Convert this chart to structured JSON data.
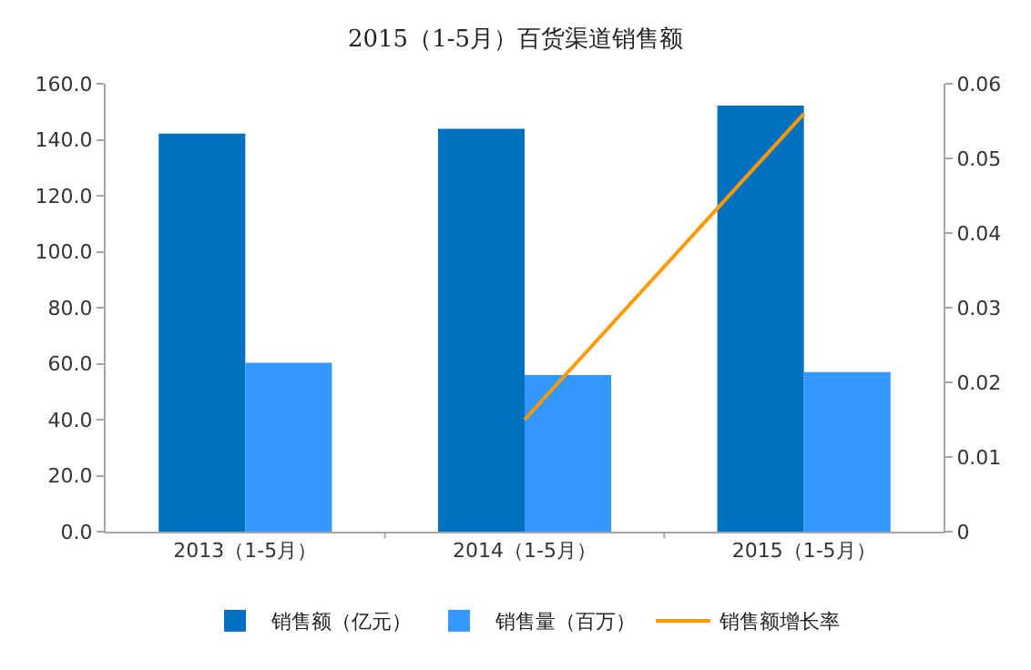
{
  "chart_data": {
    "type": "bar",
    "title": "2015（1-5月）百货渠道销售额",
    "categories": [
      "2013（1-5月）",
      "2014（1-5月）",
      "2015（1-5月）"
    ],
    "series": [
      {
        "name": "销售额（亿元）",
        "color": "#0070c0",
        "values": [
          142.2,
          143.9,
          152.2
        ]
      },
      {
        "name": "销售量（百万）",
        "color": "#3399ff",
        "values": [
          60.3,
          55.9,
          57.0
        ]
      },
      {
        "name": "销售额增长率",
        "type": "line",
        "axis": "y2",
        "color": "#ff9900",
        "values": [
          null,
          0.015,
          0.056
        ]
      }
    ],
    "ylim": [
      0,
      160
    ],
    "yticks": [
      {
        "value": 0,
        "label": "0.0"
      },
      {
        "value": 20,
        "label": "20.0"
      },
      {
        "value": 40,
        "label": "40.0"
      },
      {
        "value": 60,
        "label": "60.0"
      },
      {
        "value": 80,
        "label": "80.0"
      },
      {
        "value": 100,
        "label": "100.0"
      },
      {
        "value": 120,
        "label": "120.0"
      },
      {
        "value": 140,
        "label": "140.0"
      },
      {
        "value": 160,
        "label": "160.0"
      }
    ],
    "y2lim": [
      0,
      0.06
    ],
    "y2ticks": [
      0,
      0.01,
      0.02,
      0.03,
      0.04,
      0.05,
      0.06
    ],
    "grid": false,
    "legend": "bottom"
  }
}
